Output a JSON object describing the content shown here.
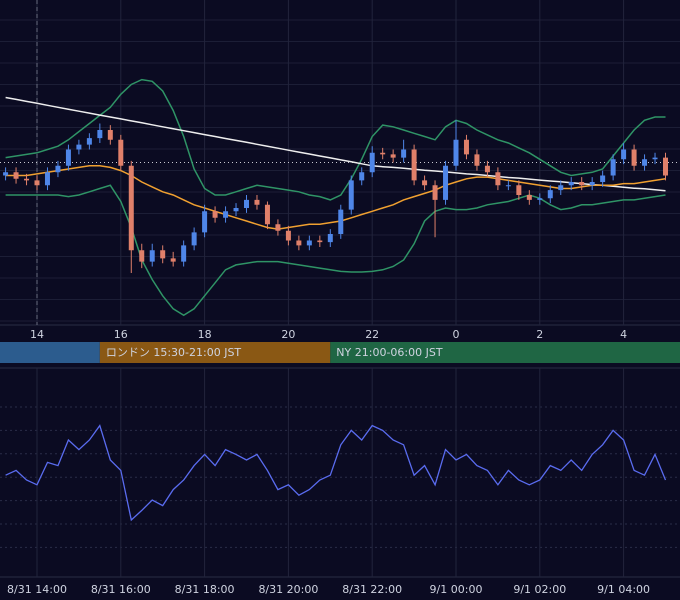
{
  "chart_data": {
    "type": "candlestick",
    "background": "#0b0b22",
    "up_color": "#4f86e8",
    "down_color": "#e0806a",
    "x": [
      13.25,
      13.5,
      13.75,
      14,
      14.25,
      14.5,
      14.75,
      15,
      15.25,
      15.5,
      15.75,
      16,
      16.25,
      16.5,
      16.75,
      17,
      17.25,
      17.5,
      17.75,
      18,
      18.25,
      18.5,
      18.75,
      19,
      19.25,
      19.5,
      19.75,
      20,
      20.25,
      20.5,
      20.75,
      21,
      21.25,
      21.5,
      21.75,
      22,
      22.25,
      22.5,
      22.75,
      23,
      23.25,
      23.5,
      23.75,
      24,
      24.25,
      24.5,
      24.75,
      25,
      25.25,
      25.5,
      25.75,
      26,
      26.25,
      26.5,
      26.75,
      27,
      27.25,
      27.5,
      27.75,
      28,
      28.25,
      28.5,
      28.75,
      29
    ],
    "open": [
      46,
      47,
      45,
      44.5,
      43,
      47,
      49,
      54,
      55.5,
      57.5,
      60,
      57,
      49,
      23,
      19.5,
      23,
      20.5,
      19.5,
      24.5,
      28.5,
      35,
      33,
      35,
      36,
      38.5,
      37,
      31,
      29,
      26,
      24.5,
      26,
      25.5,
      28,
      35.5,
      44.5,
      47,
      53,
      52.5,
      51.5,
      54,
      44.5,
      43,
      38.5,
      49,
      57,
      52.5,
      49,
      47,
      43,
      43,
      40,
      38.5,
      39,
      41.5,
      43,
      44,
      43,
      44,
      46,
      51,
      54,
      49,
      51,
      51.5
    ],
    "high": [
      48.5,
      48.5,
      46.5,
      46,
      48.5,
      50.5,
      55.5,
      57,
      59,
      62,
      61.5,
      58.5,
      50.5,
      25,
      25,
      24.5,
      22.5,
      26,
      30,
      37,
      36.5,
      36.5,
      37.5,
      40,
      40,
      38,
      32.5,
      30.5,
      27.5,
      27.5,
      27.5,
      29.5,
      37,
      46,
      48.5,
      55,
      54.5,
      54,
      57,
      55.5,
      46,
      44.5,
      50.5,
      63,
      58.5,
      54,
      50.5,
      48.5,
      44.5,
      44.5,
      41.5,
      40.5,
      43,
      44.5,
      45.5,
      45.5,
      45.5,
      47.5,
      52.5,
      56,
      55.5,
      52.5,
      53,
      53
    ],
    "low": [
      44.5,
      43.5,
      43,
      41.5,
      41.5,
      45.5,
      47.5,
      52.5,
      54,
      56,
      55.5,
      47.5,
      16,
      17.5,
      18,
      19,
      18,
      18,
      23,
      27,
      31.5,
      31.5,
      33.5,
      34.5,
      35.5,
      29.5,
      27.5,
      24.5,
      23,
      23,
      24,
      24,
      26.5,
      34,
      43,
      45.5,
      51,
      50,
      50,
      43,
      41.5,
      27,
      37,
      47.5,
      51,
      47.5,
      45.5,
      41.5,
      41.5,
      38.5,
      37,
      37,
      37.5,
      40,
      41.5,
      41.5,
      41.5,
      42.5,
      44.5,
      49.5,
      47.5,
      47.5,
      49.5,
      44.5
    ],
    "close": [
      47,
      45,
      44.5,
      43,
      47,
      49,
      54,
      55.5,
      57.5,
      60,
      57,
      49,
      23,
      19.5,
      23,
      20.5,
      19.5,
      24.5,
      28.5,
      35,
      33,
      35,
      36,
      38.5,
      37,
      31,
      29,
      26,
      24.5,
      26,
      25.5,
      28,
      35.5,
      44.5,
      47,
      53,
      52.5,
      51.5,
      54,
      44.5,
      43,
      38.5,
      49,
      57,
      52.5,
      49,
      47,
      43,
      43,
      40,
      38.5,
      39,
      41.5,
      43,
      44,
      43,
      44,
      46,
      51,
      54,
      49,
      51,
      51.5,
      46
    ],
    "series": [
      {
        "color": "#2f9466",
        "panel": "upper",
        "values": [
          51.5,
          52,
          52.5,
          53,
          54,
          55,
          57,
          59.5,
          62,
          64.5,
          67,
          71,
          74,
          75.5,
          75,
          72,
          66,
          58,
          48,
          42,
          40,
          40,
          41,
          42,
          43,
          42.5,
          42,
          41.5,
          41,
          40,
          39.5,
          38.5,
          40,
          45,
          51,
          58,
          61.5,
          61,
          60,
          59,
          58,
          57,
          61,
          63,
          62,
          60,
          58.5,
          57,
          56,
          54.5,
          53,
          51,
          49,
          47,
          46,
          46.5,
          47,
          48,
          52,
          56,
          60,
          63,
          64,
          64
        ]
      },
      {
        "color": "#2f9466",
        "panel": "upper",
        "values": [
          40,
          40,
          40,
          40,
          40,
          40,
          39.5,
          40,
          41,
          42,
          43,
          38,
          30,
          20,
          14,
          9,
          5,
          3,
          5,
          9,
          13,
          17,
          18.5,
          19,
          19.5,
          19.5,
          19.5,
          19,
          18.5,
          18,
          17.5,
          17,
          16.5,
          16.3,
          16.3,
          16.5,
          17,
          18,
          20,
          25,
          32,
          35,
          36,
          35.5,
          35.5,
          36,
          37,
          37.5,
          38,
          39,
          40,
          39,
          37,
          35.5,
          36,
          37,
          37,
          37.5,
          38,
          38.5,
          38.5,
          39,
          39.5,
          40
        ]
      },
      {
        "color": "#eeeeee",
        "panel": "upper",
        "values": [
          70,
          69.4,
          68.8,
          68.2,
          67.6,
          67,
          66.4,
          65.8,
          65.2,
          64.6,
          64,
          63.4,
          62.8,
          62.2,
          61.6,
          61,
          60.4,
          59.8,
          59.2,
          58.6,
          58,
          57.4,
          56.8,
          56.2,
          55.6,
          55,
          54.4,
          53.8,
          53.2,
          52.6,
          52,
          51.4,
          50.8,
          50.2,
          49.6,
          49,
          48.7,
          48.5,
          48.2,
          47.9,
          47.6,
          47.4,
          47.1,
          46.8,
          46.5,
          46.3,
          46,
          45.7,
          45.4,
          45.2,
          44.9,
          44.6,
          44.3,
          44.1,
          43.8,
          43.5,
          43.2,
          43,
          42.7,
          42.4,
          42.1,
          41.9,
          41.6,
          41.3
        ]
      },
      {
        "color": "#f0a030",
        "panel": "upper",
        "values": [
          46,
          46,
          46,
          46.5,
          47,
          47.5,
          48,
          48.5,
          49,
          49,
          48.5,
          47.5,
          46,
          44,
          42.5,
          41,
          40,
          38.5,
          37,
          36,
          35,
          34,
          33,
          32,
          31,
          30,
          29.5,
          30,
          30.5,
          31,
          31,
          31.5,
          32,
          33,
          34,
          35,
          36,
          37,
          38.5,
          39.5,
          40.5,
          41.5,
          43,
          44,
          45,
          45.5,
          45.5,
          45,
          44.5,
          44,
          43.5,
          43,
          42.5,
          42,
          42,
          42.5,
          43,
          43,
          43,
          43.5,
          43.5,
          44,
          44.5,
          45
        ]
      },
      {
        "color": "#5a6cf0",
        "panel": "lower",
        "values": [
          53,
          56,
          50,
          47,
          61,
          59,
          75,
          69,
          75,
          84,
          62.5,
          56,
          25,
          31,
          37.5,
          34,
          44,
          50,
          59,
          66,
          59,
          69,
          66,
          62.5,
          66,
          56,
          44,
          47,
          40.5,
          44,
          50,
          53,
          72,
          81,
          75,
          84,
          81,
          75,
          72,
          53,
          59,
          47,
          69,
          62.5,
          66,
          59,
          56,
          47,
          56,
          50,
          47,
          50,
          59,
          56,
          62.5,
          56,
          66,
          72,
          81,
          75,
          56,
          53,
          66,
          50
        ]
      }
    ],
    "ylim": [
      0,
      100
    ],
    "ylim_lower": [
      0,
      100
    ],
    "price_line": 50,
    "vline": 14,
    "xticks": [
      14,
      16,
      18,
      20,
      22,
      {
        "value": 24,
        "label": "0"
      },
      {
        "value": 26,
        "label": "2"
      },
      {
        "value": 28,
        "label": "4"
      }
    ],
    "xticks_lower": [
      {
        "value": 14,
        "label": "8/31 14:00"
      },
      {
        "value": 16,
        "label": "8/31 16:00"
      },
      {
        "value": 18,
        "label": "8/31 18:00"
      },
      {
        "value": 20,
        "label": "8/31 20:00"
      },
      {
        "value": 22,
        "label": "8/31 22:00"
      },
      {
        "value": 24,
        "label": "9/1 00:00"
      },
      {
        "value": 26,
        "label": "9/1 02:00"
      },
      {
        "value": 28,
        "label": "9/1 04:00"
      }
    ],
    "sessions": [
      {
        "color": "#2c5c8e",
        "end": 15.5
      },
      {
        "label": "ロンドン 15:30-21:00 JST",
        "color": "#8a5814",
        "start": 15.5,
        "end": 21
      },
      {
        "label": "NY 21:00-06:00 JST",
        "color": "#1f6644",
        "start": 21,
        "end": 30
      }
    ]
  }
}
